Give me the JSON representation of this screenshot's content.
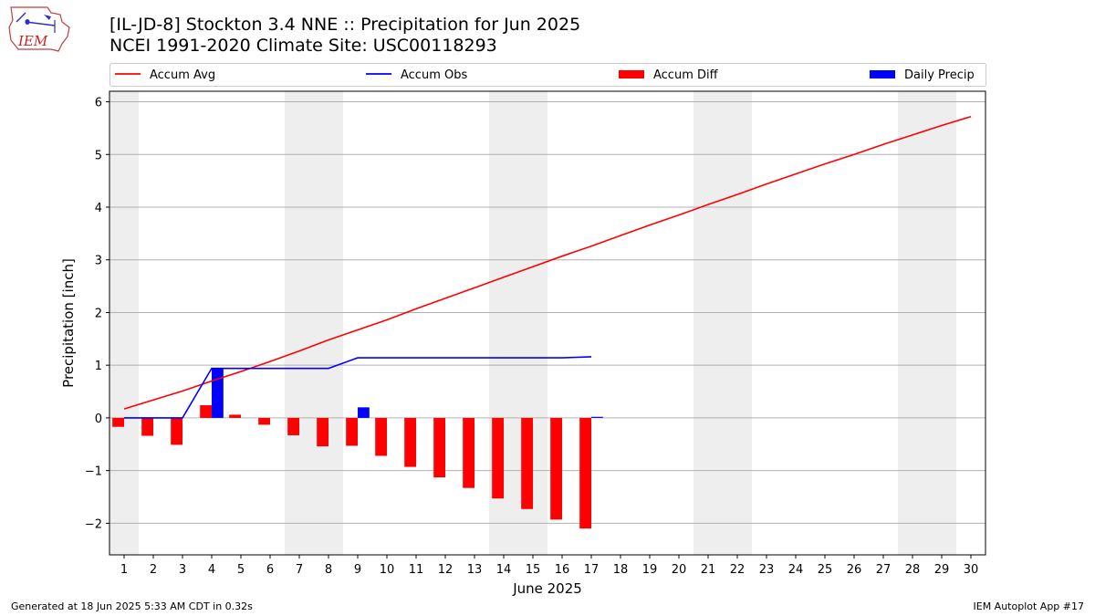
{
  "header": {
    "logo_text": "IEM",
    "title_line1": "[IL-JD-8] Stockton 3.4 NNE :: Precipitation for Jun 2025",
    "title_line2": "NCEI 1991-2020 Climate Site: USC00118293"
  },
  "footer": {
    "left": "Generated at 18 Jun 2025 5:33 AM CDT in 0.32s",
    "right": "IEM Autoplot App #17"
  },
  "colors": {
    "accum_avg": "#ff0000",
    "accum_obs": "#0000ff",
    "accum_diff": "#ff0000",
    "daily_precip": "#0000ff",
    "weekend_shade": "#eeeeee",
    "grid": "#b0b0b0"
  },
  "chart_data": {
    "type": "bar",
    "xlabel": "June 2025",
    "ylabel": "Precipitation [inch]",
    "xlim": [
      0.5,
      30.5
    ],
    "ylim": [
      -2.6,
      6.2
    ],
    "yticks": [
      -2,
      -1,
      0,
      1,
      2,
      3,
      4,
      5,
      6
    ],
    "ytick_labels": [
      "−2",
      "−1",
      "0",
      "1",
      "2",
      "3",
      "4",
      "5",
      "6"
    ],
    "days": [
      1,
      2,
      3,
      4,
      5,
      6,
      7,
      8,
      9,
      10,
      11,
      12,
      13,
      14,
      15,
      16,
      17,
      18,
      19,
      20,
      21,
      22,
      23,
      24,
      25,
      26,
      27,
      28,
      29,
      30
    ],
    "grid": "horizontal",
    "legend_position": "top",
    "weekend_spans": [
      [
        0.5,
        1.5
      ],
      [
        6.5,
        8.5
      ],
      [
        13.5,
        15.5
      ],
      [
        20.5,
        22.5
      ],
      [
        27.5,
        29.5
      ]
    ],
    "series": [
      {
        "name": "Accum Avg",
        "kind": "line",
        "values": [
          0.17,
          0.34,
          0.51,
          0.7,
          0.88,
          1.07,
          1.27,
          1.48,
          1.67,
          1.86,
          2.07,
          2.27,
          2.47,
          2.67,
          2.87,
          3.07,
          3.26,
          3.46,
          3.66,
          3.85,
          4.05,
          4.24,
          4.44,
          4.63,
          4.82,
          5.0,
          5.19,
          5.37,
          5.55,
          5.72
        ]
      },
      {
        "name": "Accum Obs",
        "kind": "line",
        "values": [
          0.0,
          0.0,
          0.0,
          0.94,
          0.94,
          0.94,
          0.94,
          0.94,
          1.14,
          1.14,
          1.14,
          1.14,
          1.14,
          1.14,
          1.14,
          1.14,
          1.16
        ]
      },
      {
        "name": "Accum Diff",
        "kind": "bar",
        "values": [
          -0.17,
          -0.34,
          -0.51,
          0.24,
          0.06,
          -0.13,
          -0.33,
          -0.54,
          -0.53,
          -0.72,
          -0.93,
          -1.13,
          -1.33,
          -1.53,
          -1.73,
          -1.93,
          -2.1
        ]
      },
      {
        "name": "Daily Precip",
        "kind": "bar",
        "values": [
          0.0,
          0.0,
          0.0,
          0.94,
          0.0,
          0.0,
          0.0,
          0.0,
          0.2,
          0.0,
          0.0,
          0.0,
          0.0,
          0.0,
          0.0,
          0.0,
          0.02
        ]
      }
    ]
  }
}
